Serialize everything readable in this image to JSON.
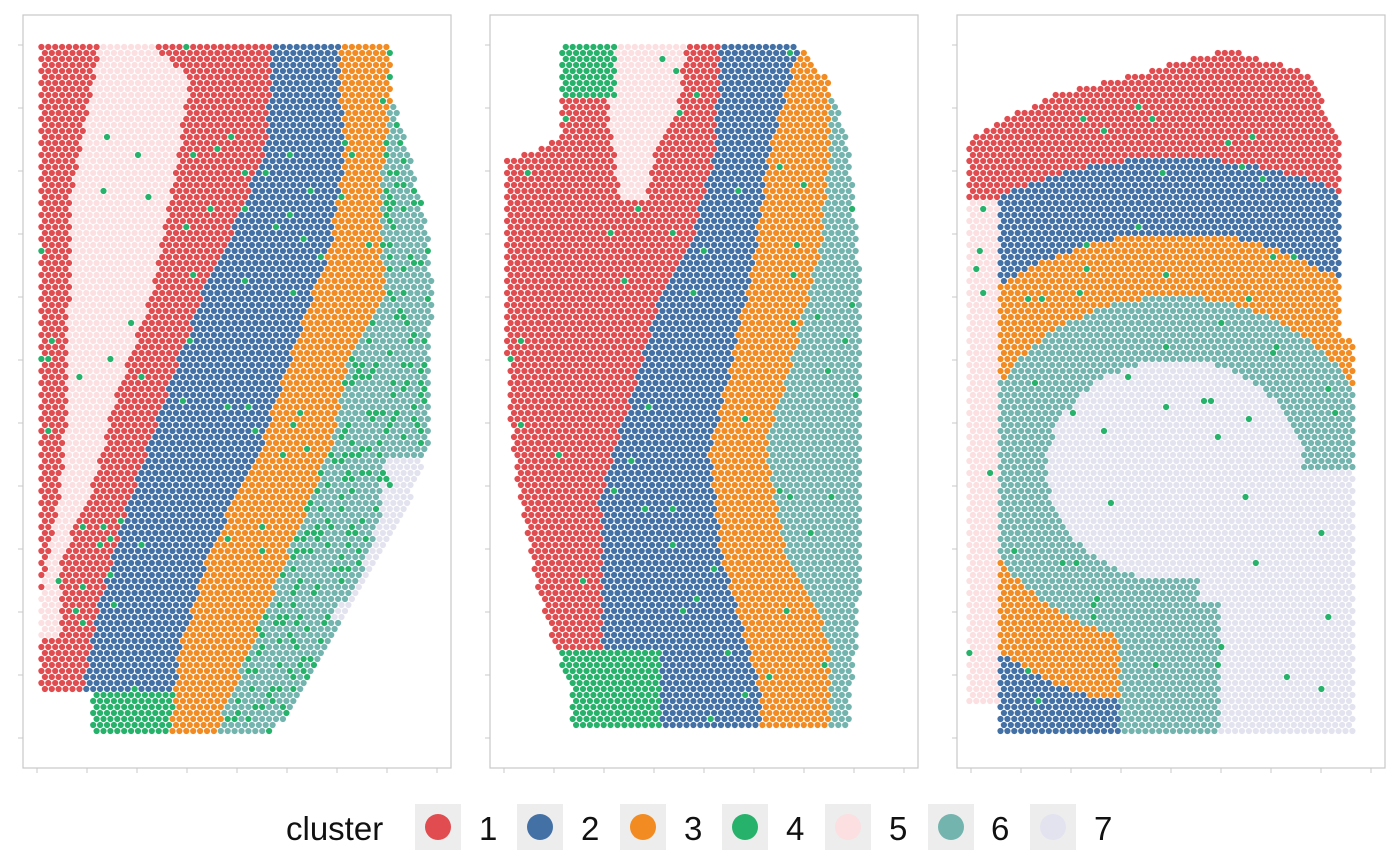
{
  "chart_data": {
    "type": "scatter",
    "description_free": true,
    "panels": [
      {
        "id": "panel-1",
        "xlim": [
          0,
          100
        ],
        "ylim": [
          0,
          100
        ]
      },
      {
        "id": "panel-2",
        "xlim": [
          0,
          100
        ],
        "ylim": [
          0,
          100
        ]
      },
      {
        "id": "panel-3",
        "xlim": [
          0,
          100
        ],
        "ylim": [
          0,
          100
        ]
      }
    ],
    "legend": {
      "title": "cluster",
      "position": "bottom",
      "entries": [
        {
          "label": "1",
          "color": "#e04c4f"
        },
        {
          "label": "2",
          "color": "#4371a6"
        },
        {
          "label": "3",
          "color": "#f28b21"
        },
        {
          "label": "4",
          "color": "#27b26b"
        },
        {
          "label": "5",
          "color": "#fbdfe1"
        },
        {
          "label": "6",
          "color": "#74b4ae"
        },
        {
          "label": "7",
          "color": "#e2e3ef"
        }
      ]
    },
    "grid": false
  }
}
